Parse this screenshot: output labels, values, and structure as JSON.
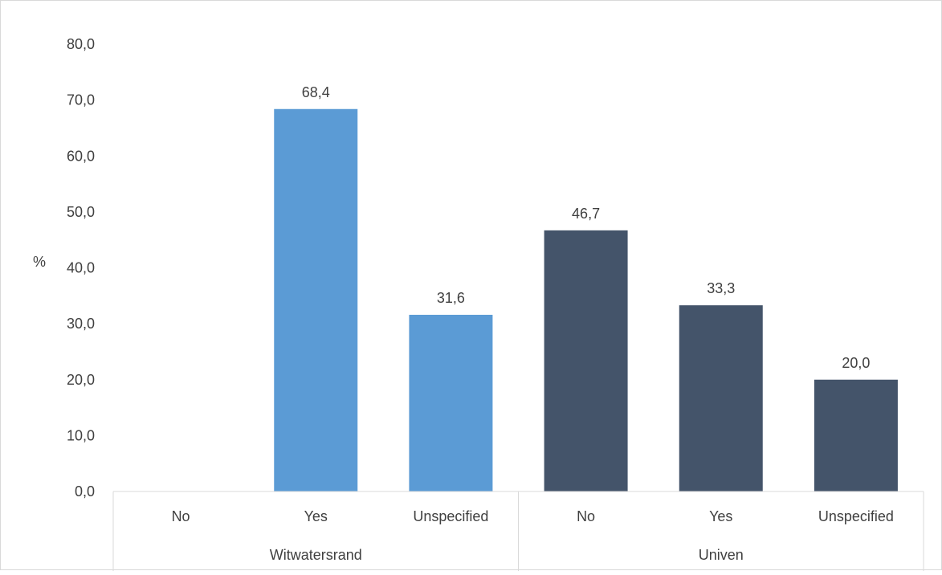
{
  "chart_data": {
    "type": "bar",
    "ylabel": "%",
    "ylim": [
      0,
      80
    ],
    "ytick_step": 10,
    "yticks": [
      "0,0",
      "10,0",
      "20,0",
      "30,0",
      "40,0",
      "50,0",
      "60,0",
      "70,0",
      "80,0"
    ],
    "grid": false,
    "legend": "none",
    "groups": [
      {
        "name": "Witwatersrand",
        "color": "#5b9bd5",
        "categories": [
          "No",
          "Yes",
          "Unspecified"
        ],
        "values": [
          null,
          68.4,
          31.6
        ],
        "labels": [
          "",
          "68,4",
          "31,6"
        ]
      },
      {
        "name": "Univen",
        "color": "#44546a",
        "categories": [
          "No",
          "Yes",
          "Unspecified"
        ],
        "values": [
          46.7,
          33.3,
          20.0
        ],
        "labels": [
          "46,7",
          "33,3",
          "20,0"
        ]
      }
    ]
  }
}
